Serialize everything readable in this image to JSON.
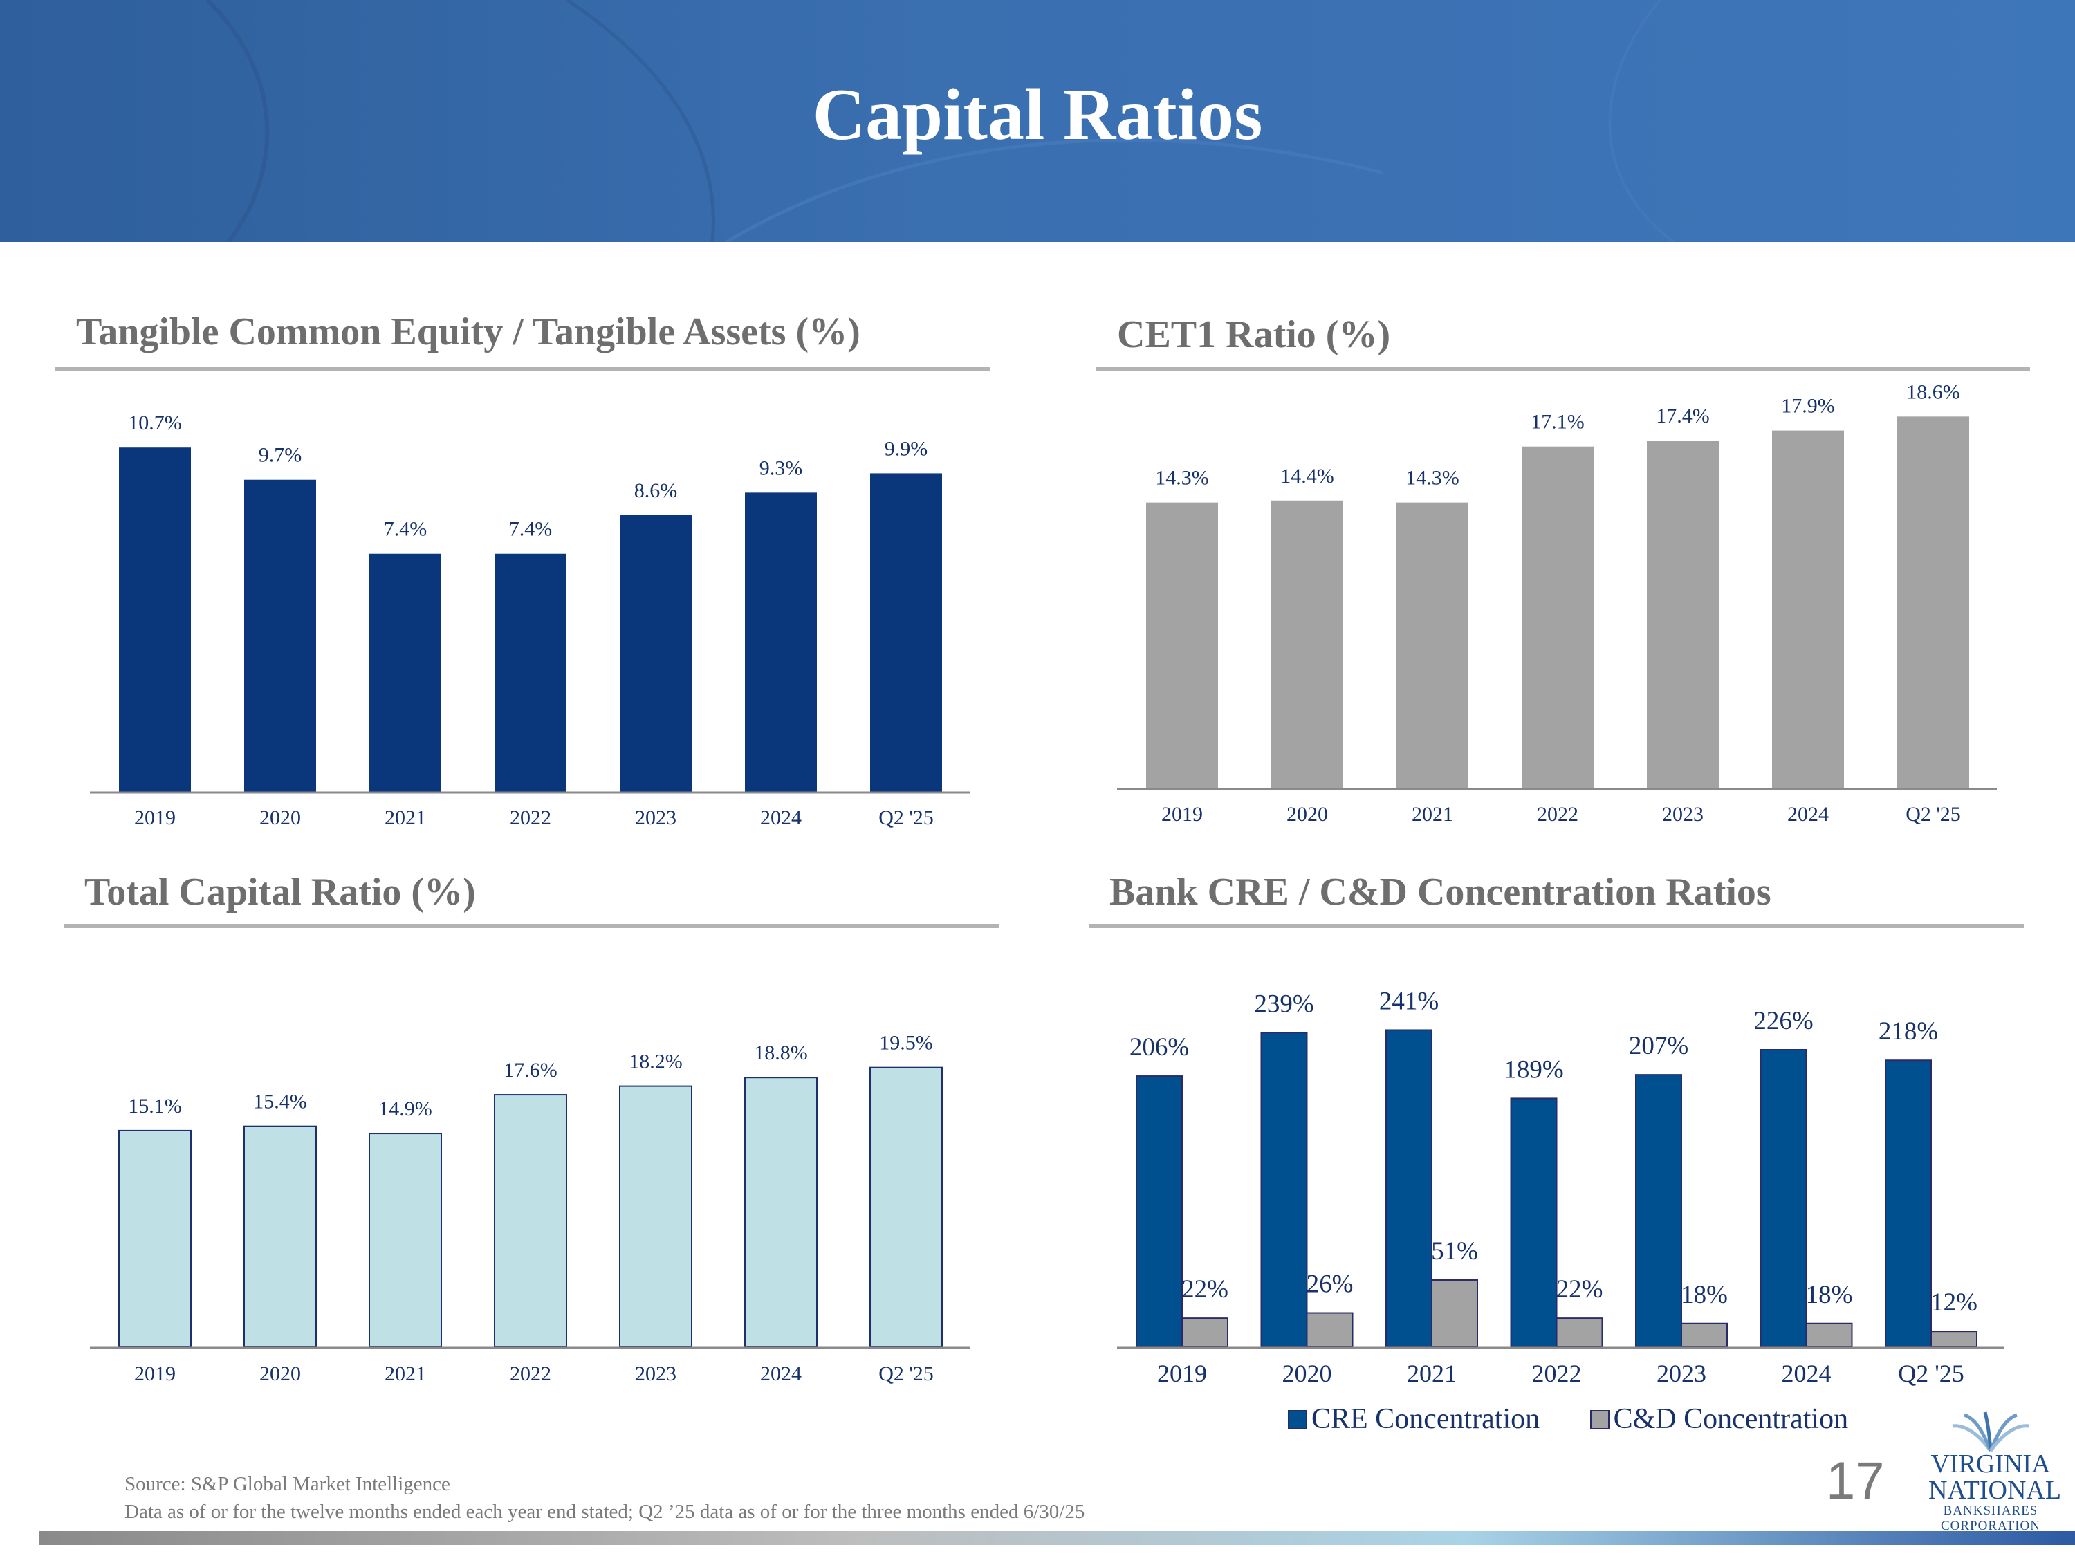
{
  "page": {
    "title": "Capital Ratios",
    "page_number": "17",
    "footnotes": [
      "Source: S&P Global Market Intelligence",
      "Data as of or for the twelve months ended each year end stated; Q2 ’25 data as of or for the three months ended 6/30/25"
    ],
    "logo": {
      "line1": "VIRGINIA",
      "line2": "NATIONAL",
      "line3": "BANKSHARES",
      "line4": "CORPORATION",
      "icon": "wheat-sheaf-icon"
    }
  },
  "colors": {
    "header_blue": "#3a6fb0",
    "tce_bar": "#0a377c",
    "cet1_bar": "#a3a3a3",
    "total_bar": "#bfe1e5",
    "cre_bar": "#00508f",
    "cd_bar": "#a3a3a3",
    "label_text": "#17316b"
  },
  "chart_data": [
    {
      "id": "tce",
      "type": "bar",
      "title": "Tangible Common Equity / Tangible Assets (%)",
      "categories": [
        "2019",
        "2020",
        "2021",
        "2022",
        "2023",
        "2024",
        "Q2 '25"
      ],
      "values": [
        10.7,
        9.7,
        7.4,
        7.4,
        8.6,
        9.3,
        9.9
      ],
      "labels": [
        "10.7%",
        "9.7%",
        "7.4%",
        "7.4%",
        "8.6%",
        "9.3%",
        "9.9%"
      ],
      "ylim": [
        0,
        11.5
      ]
    },
    {
      "id": "cet1",
      "type": "bar",
      "title": "CET1 Ratio (%)",
      "categories": [
        "2019",
        "2020",
        "2021",
        "2022",
        "2023",
        "2024",
        "Q2 '25"
      ],
      "values": [
        14.3,
        14.4,
        14.3,
        17.1,
        17.4,
        17.9,
        18.6
      ],
      "labels": [
        "14.3%",
        "14.4%",
        "14.3%",
        "17.1%",
        "17.4%",
        "17.9%",
        "18.6%"
      ],
      "ylim": [
        0,
        19.2
      ]
    },
    {
      "id": "total",
      "type": "bar",
      "title": "Total Capital Ratio (%)",
      "categories": [
        "2019",
        "2020",
        "2021",
        "2022",
        "2023",
        "2024",
        "Q2 '25"
      ],
      "values": [
        15.1,
        15.4,
        14.9,
        17.6,
        18.2,
        18.8,
        19.5
      ],
      "labels": [
        "15.1%",
        "15.4%",
        "14.9%",
        "17.6%",
        "18.2%",
        "18.8%",
        "19.5%"
      ],
      "ylim": [
        0,
        24.5
      ]
    },
    {
      "id": "cre",
      "type": "bar",
      "title": "Bank CRE / C&D Concentration Ratios",
      "categories": [
        "2019",
        "2020",
        "2021",
        "2022",
        "2023",
        "2024",
        "Q2 '25"
      ],
      "series": [
        {
          "name": "CRE Concentration",
          "values": [
            206,
            239,
            241,
            189,
            207,
            226,
            218
          ],
          "labels": [
            "206%",
            "239%",
            "241%",
            "189%",
            "207%",
            "226%",
            "218%"
          ]
        },
        {
          "name": "C&D Concentration",
          "values": [
            22,
            26,
            51,
            22,
            18,
            18,
            12
          ],
          "labels": [
            "22%",
            "26%",
            "51%",
            "22%",
            "18%",
            "18%",
            "12%"
          ]
        }
      ],
      "ylim": [
        0,
        267
      ],
      "legend": "bottom"
    }
  ]
}
